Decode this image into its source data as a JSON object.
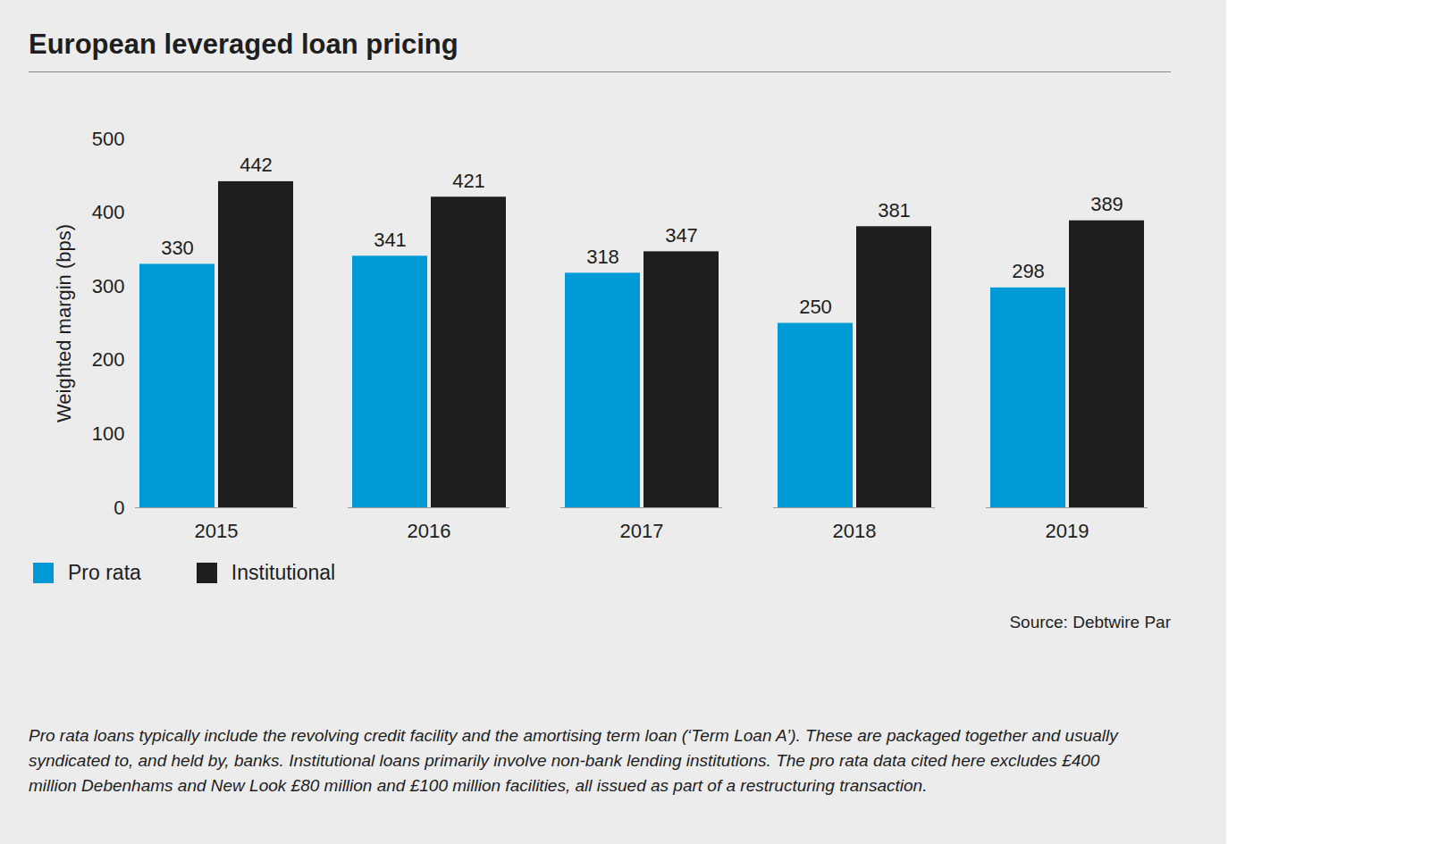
{
  "chart_data": {
    "type": "bar",
    "title": "European leveraged loan pricing",
    "y_label": "Weighted margin (bps)",
    "categories": [
      "2015",
      "2016",
      "2017",
      "2018",
      "2019"
    ],
    "series": [
      {
        "name": "Pro rata",
        "color": "#009bd6",
        "values": [
          330,
          341,
          318,
          250,
          298
        ]
      },
      {
        "name": "Institutional",
        "color": "#1e1e1e",
        "values": [
          442,
          421,
          347,
          381,
          389
        ]
      }
    ],
    "ylim": [
      0,
      500
    ],
    "yticks": [
      0,
      100,
      200,
      300,
      400,
      500
    ],
    "grid": false,
    "data_labels": true,
    "legend": "bottom-left",
    "source": "Source: Debtwire Par",
    "note": "Pro rata loans typically include the revolving credit facility and the amortising term loan (‘Term Loan A’). These are packaged together and usually syndicated to, and held by, banks. Institutional loans primarily involve non-bank lending institutions. The pro rata data cited here excludes £400 million Debenhams and New Look £80 million and £100 million facilities, all issued as part of a restructuring transaction."
  }
}
